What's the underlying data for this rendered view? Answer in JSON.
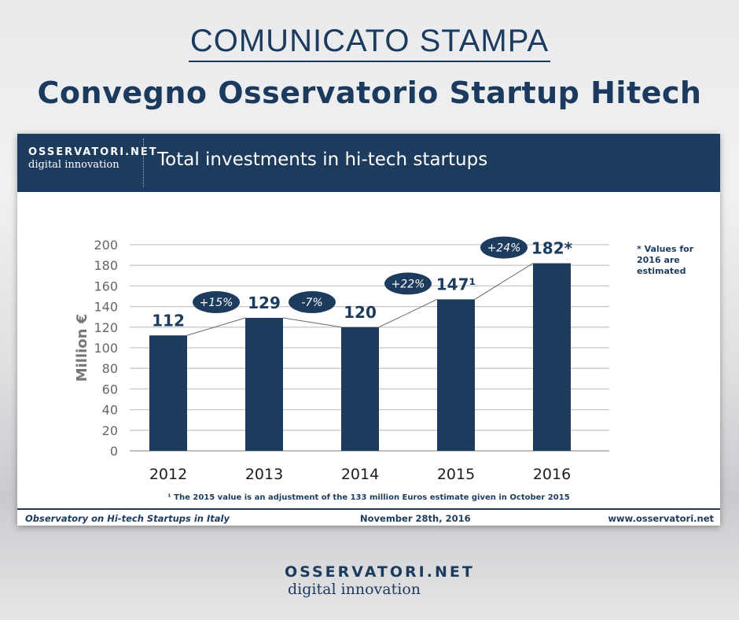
{
  "headline": "COMUNICATO STAMPA",
  "subheadline": "Convegno Osservatorio Startup Hitech",
  "logo": {
    "line1": "OSSERVATORI.NET",
    "line2": "digital innovation"
  },
  "card": {
    "title": "Total investments in hi-tech startups",
    "footnote": "¹ The 2015 value is an adjustment of the 133 million Euros estimate given in October 2015",
    "note": "* Values for 2016 are estimated",
    "footer_left": "Observatory on Hi-tech Startups in Italy",
    "footer_center": "November  28th,  2016",
    "footer_right": "www.osservatori.net"
  },
  "chart_data": {
    "type": "bar",
    "title": "Total investments in hi-tech startups",
    "ylabel": "Million €",
    "xlabel": "",
    "ylim": [
      0,
      200
    ],
    "yticks": [
      0,
      20,
      40,
      60,
      80,
      100,
      120,
      140,
      160,
      180,
      200
    ],
    "grid": true,
    "categories": [
      "2012",
      "2013",
      "2014",
      "2015",
      "2016"
    ],
    "values": [
      112,
      129,
      120,
      147,
      182
    ],
    "data_labels": [
      "112",
      "129",
      "120",
      "147¹",
      "182*"
    ],
    "growth_labels": [
      "+15%",
      "-7%",
      "+22%",
      "+24%"
    ],
    "colors": {
      "bar": "#1d3c5d",
      "grid": "#c8c8c8"
    }
  }
}
